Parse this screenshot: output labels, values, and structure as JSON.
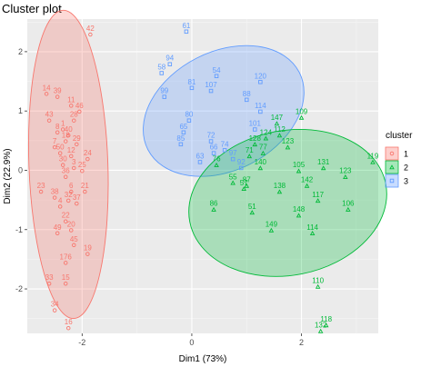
{
  "chart_data": {
    "type": "scatter",
    "title": "Cluster plot",
    "xlabel": "Dim1 (73%)",
    "ylabel": "Dim2 (22.9%)",
    "xlim": [
      -3.0,
      3.4
    ],
    "ylim": [
      -2.75,
      2.55
    ],
    "x_ticks": [
      -2,
      0,
      2
    ],
    "y_ticks": [
      -2,
      -1,
      0,
      1,
      2
    ],
    "grid": true,
    "background": "#ebebeb",
    "legend": {
      "title": "cluster",
      "position": "right",
      "items": [
        {
          "label": "1",
          "color": "#f8766d",
          "fill": "#f8766d"
        },
        {
          "label": "2",
          "color": "#00ba38",
          "fill": "#00ba38"
        },
        {
          "label": "3",
          "color": "#619cff",
          "fill": "#619cff"
        }
      ]
    },
    "ellipses": [
      {
        "cluster": "1",
        "cx": -2.25,
        "cy": 0.1,
        "rx": 0.72,
        "ry": 2.6,
        "angle": -2
      },
      {
        "cluster": "3",
        "cx": 0.58,
        "cy": 1.0,
        "rx": 1.55,
        "ry": 1.0,
        "angle": -27
      },
      {
        "cluster": "2",
        "cx": 1.75,
        "cy": -0.55,
        "rx": 1.82,
        "ry": 1.22,
        "angle": -11
      }
    ],
    "series": [
      {
        "name": "1",
        "color": "#f8766d",
        "points": [
          {
            "label": "42",
            "x": -1.85,
            "y": 2.35
          },
          {
            "label": "14",
            "x": -2.65,
            "y": 1.35
          },
          {
            "label": "39",
            "x": -2.45,
            "y": 1.3
          },
          {
            "label": "11",
            "x": -2.2,
            "y": 1.15
          },
          {
            "label": "43",
            "x": -2.6,
            "y": 0.9
          },
          {
            "label": "46",
            "x": -2.05,
            "y": 1.05
          },
          {
            "label": "1",
            "x": -2.35,
            "y": 0.75
          },
          {
            "label": "28",
            "x": -2.15,
            "y": 0.9
          },
          {
            "label": "8",
            "x": -2.45,
            "y": 0.7
          },
          {
            "label": "40",
            "x": -2.25,
            "y": 0.65
          },
          {
            "label": "18",
            "x": -2.3,
            "y": 0.55
          },
          {
            "label": "29",
            "x": -2.1,
            "y": 0.5
          },
          {
            "label": "7",
            "x": -2.5,
            "y": 0.45
          },
          {
            "label": "50",
            "x": -2.4,
            "y": 0.35
          },
          {
            "label": "12",
            "x": -2.2,
            "y": 0.3
          },
          {
            "label": "24",
            "x": -1.9,
            "y": 0.25
          },
          {
            "label": "30",
            "x": -2.35,
            "y": 0.15
          },
          {
            "label": "3",
            "x": -2.15,
            "y": 0.1
          },
          {
            "label": "25",
            "x": -2.0,
            "y": 0.05
          },
          {
            "label": "36",
            "x": -2.3,
            "y": -0.05
          },
          {
            "label": "23",
            "x": -2.75,
            "y": -0.3
          },
          {
            "label": "38",
            "x": -2.5,
            "y": -0.4
          },
          {
            "label": "6",
            "x": -2.2,
            "y": -0.3
          },
          {
            "label": "21",
            "x": -1.95,
            "y": -0.3
          },
          {
            "label": "32",
            "x": -2.25,
            "y": -0.45
          },
          {
            "label": "37",
            "x": -2.1,
            "y": -0.5
          },
          {
            "label": "4",
            "x": -2.4,
            "y": -0.55
          },
          {
            "label": "22",
            "x": -2.3,
            "y": -0.8
          },
          {
            "label": "20",
            "x": -2.2,
            "y": -0.95
          },
          {
            "label": "49",
            "x": -2.45,
            "y": -1.0
          },
          {
            "label": "45",
            "x": -2.15,
            "y": -1.2
          },
          {
            "label": "19",
            "x": -1.9,
            "y": -1.35
          },
          {
            "label": "176",
            "x": -2.3,
            "y": -1.5
          },
          {
            "label": "33",
            "x": -2.6,
            "y": -1.85
          },
          {
            "label": "15",
            "x": -2.3,
            "y": -1.85
          },
          {
            "label": "34",
            "x": -2.5,
            "y": -2.3
          },
          {
            "label": "16",
            "x": -2.25,
            "y": -2.6
          }
        ]
      },
      {
        "name": "2",
        "color": "#00ba38",
        "points": [
          {
            "label": "109",
            "x": 2.0,
            "y": 0.95
          },
          {
            "label": "147",
            "x": 1.55,
            "y": 0.85
          },
          {
            "label": "112",
            "x": 1.6,
            "y": 0.65
          },
          {
            "label": "124",
            "x": 1.35,
            "y": 0.6
          },
          {
            "label": "128",
            "x": 1.15,
            "y": 0.5
          },
          {
            "label": "123",
            "x": 1.75,
            "y": 0.45
          },
          {
            "label": "77",
            "x": 1.3,
            "y": 0.35
          },
          {
            "label": "71",
            "x": 1.05,
            "y": 0.3
          },
          {
            "label": "119",
            "x": 3.3,
            "y": 0.2
          },
          {
            "label": "76",
            "x": 0.45,
            "y": 0.15
          },
          {
            "label": "140",
            "x": 1.25,
            "y": 0.1
          },
          {
            "label": "131",
            "x": 2.4,
            "y": 0.1
          },
          {
            "label": "105",
            "x": 1.95,
            "y": 0.05
          },
          {
            "label": "123",
            "x": 2.8,
            "y": -0.05
          },
          {
            "label": "55",
            "x": 0.75,
            "y": -0.15
          },
          {
            "label": "87",
            "x": 1.0,
            "y": -0.2
          },
          {
            "label": "142",
            "x": 2.1,
            "y": -0.2
          },
          {
            "label": "57",
            "x": 0.95,
            "y": -0.25
          },
          {
            "label": "138",
            "x": 1.6,
            "y": -0.3
          },
          {
            "label": "117",
            "x": 2.3,
            "y": -0.45
          },
          {
            "label": "106",
            "x": 2.85,
            "y": -0.6
          },
          {
            "label": "86",
            "x": 0.4,
            "y": -0.6
          },
          {
            "label": "51",
            "x": 1.1,
            "y": -0.65
          },
          {
            "label": "148",
            "x": 1.95,
            "y": -0.7
          },
          {
            "label": "149",
            "x": 1.45,
            "y": -0.95
          },
          {
            "label": "114",
            "x": 2.2,
            "y": -1.0
          },
          {
            "label": "110",
            "x": 2.3,
            "y": -1.9
          },
          {
            "label": "118",
            "x": 2.45,
            "y": -2.55
          },
          {
            "label": "132",
            "x": 2.35,
            "y": -2.65
          }
        ]
      },
      {
        "name": "3",
        "color": "#619cff",
        "points": [
          {
            "label": "61",
            "x": -0.1,
            "y": 2.4
          },
          {
            "label": "94",
            "x": -0.4,
            "y": 1.85
          },
          {
            "label": "58",
            "x": -0.55,
            "y": 1.7
          },
          {
            "label": "54",
            "x": 0.45,
            "y": 1.65
          },
          {
            "label": "120",
            "x": 1.25,
            "y": 1.55
          },
          {
            "label": "81",
            "x": 0.0,
            "y": 1.45
          },
          {
            "label": "107",
            "x": 0.35,
            "y": 1.4
          },
          {
            "label": "99",
            "x": -0.5,
            "y": 1.3
          },
          {
            "label": "88",
            "x": 1.0,
            "y": 1.25
          },
          {
            "label": "114",
            "x": 1.25,
            "y": 1.05
          },
          {
            "label": "80",
            "x": -0.05,
            "y": 0.9
          },
          {
            "label": "65",
            "x": -0.15,
            "y": 0.7
          },
          {
            "label": "101",
            "x": 1.15,
            "y": 0.75
          },
          {
            "label": "72",
            "x": 0.35,
            "y": 0.55
          },
          {
            "label": "85",
            "x": -0.2,
            "y": 0.5
          },
          {
            "label": "66",
            "x": 0.4,
            "y": 0.35
          },
          {
            "label": "74",
            "x": 0.6,
            "y": 0.4
          },
          {
            "label": "63",
            "x": 0.15,
            "y": 0.2
          },
          {
            "label": "92",
            "x": 0.9,
            "y": 0.1
          },
          {
            "label": "97",
            "x": 0.75,
            "y": 0.25
          }
        ]
      }
    ]
  }
}
